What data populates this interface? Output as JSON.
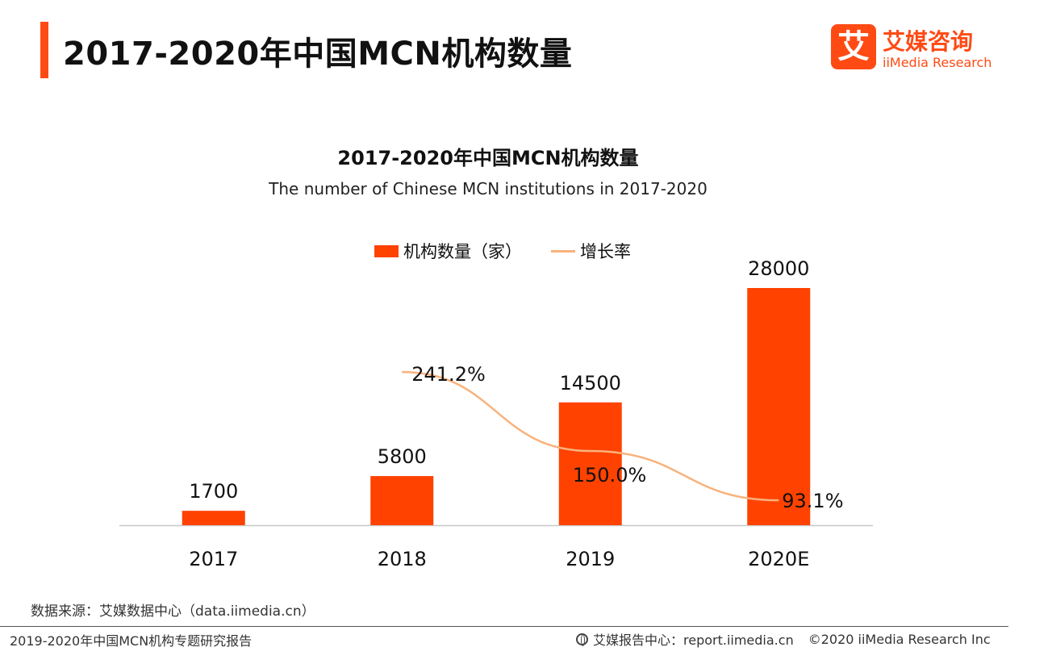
{
  "header": {
    "title": "2017-2020年中国MCN机构数量"
  },
  "logo": {
    "cn": "艾媒咨询",
    "en": "iiMedia Research",
    "mark": "艾"
  },
  "chart_data": {
    "type": "bar",
    "title": "2017-2020年中国MCN机构数量",
    "subtitle": "The number of Chinese MCN institutions in 2017-2020",
    "categories": [
      "2017",
      "2018",
      "2019",
      "2020E"
    ],
    "series": [
      {
        "name": "机构数量（家）",
        "type": "bar",
        "values": [
          1700,
          5800,
          14500,
          28000
        ],
        "labels": [
          "1700",
          "5800",
          "14500",
          "28000"
        ],
        "color": "#ff4200"
      },
      {
        "name": "增长率",
        "type": "line",
        "values": [
          null,
          241.2,
          150.0,
          93.1
        ],
        "labels": [
          "",
          "241.2%",
          "150.0%",
          "93.1%"
        ],
        "color": "#f9b27c"
      }
    ],
    "ylim": [
      0,
      28000
    ],
    "y2lim": [
      0,
      300
    ],
    "legend": "top-center",
    "grid": false
  },
  "source": "数据来源：艾媒数据中心（data.iimedia.cn）",
  "footer": {
    "left": "2019-2020年中国MCN机构专题研究报告",
    "center": "艾媒报告中心：report.iimedia.cn",
    "copyright": "©2020  iiMedia Research  Inc"
  }
}
